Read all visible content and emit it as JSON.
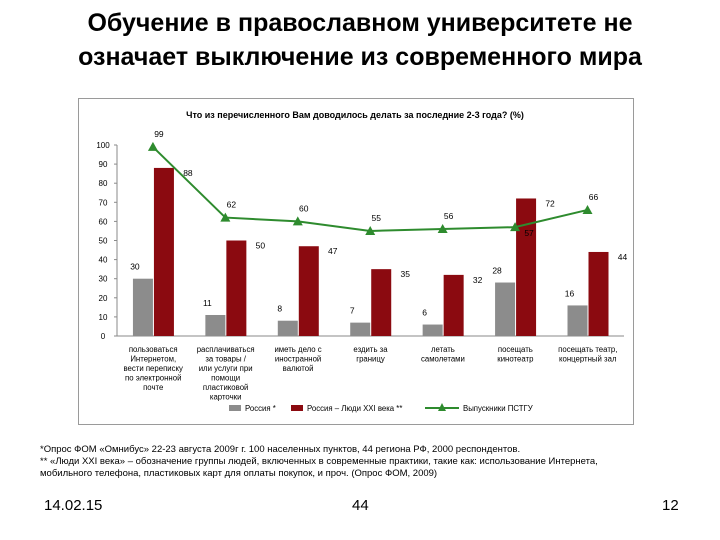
{
  "slide": {
    "title_line1": "Обучение в православном университете не",
    "title_line2": "означает выключение из современного мира"
  },
  "chart_data": {
    "type": "bar",
    "title": "Что из перечисленного Вам доводилось делать за последние 2-3 года? (%)",
    "categories": [
      [
        "пользоваться",
        "Интернетом,",
        "вести переписку",
        "по электронной",
        "почте"
      ],
      [
        "расплачиваться",
        "за товары /",
        "или услуги при",
        "помощи",
        "пластиковой",
        "карточки"
      ],
      [
        "иметь дело с",
        "иностранной",
        "валютой"
      ],
      [
        "ездить за",
        "границу"
      ],
      [
        "летать",
        "самолетами"
      ],
      [
        "посещать",
        "кинотеатр"
      ],
      [
        "посещать театр,",
        "концертный зал"
      ]
    ],
    "series": [
      {
        "name": "Россия *",
        "kind": "bar",
        "values": [
          30,
          11,
          8,
          7,
          6,
          28,
          16
        ],
        "color": "#8c8c8c"
      },
      {
        "name": "Россия – Люди XXI века **",
        "kind": "bar",
        "values": [
          88,
          50,
          47,
          35,
          32,
          72,
          44
        ],
        "color": "#8b0a10"
      },
      {
        "name": "Выпускники ПСТГУ",
        "kind": "line",
        "values": [
          99,
          62,
          60,
          55,
          56,
          57,
          66
        ],
        "color": "#2e8b2e"
      }
    ],
    "bar_labels": {
      "Россия *": [
        "30",
        "11",
        "8",
        "7",
        "6",
        "28",
        "16"
      ],
      "Россия – Люди XXI века **": [
        "88",
        "50",
        "47",
        "35",
        "32",
        "72",
        "44"
      ],
      "Выпускники ПСТГУ": [
        "99",
        "62",
        "60",
        "55",
        "56",
        "57",
        "66"
      ]
    },
    "yticks": [
      "0",
      "10",
      "20",
      "30",
      "40",
      "50",
      "60",
      "70",
      "80",
      "90",
      "100"
    ],
    "ylim": [
      0,
      100
    ],
    "grid": false,
    "legend": "bottom"
  },
  "footnote": {
    "line1": "*Опрос ФОМ «Омнибус» 22-23 августа 2009г г. 100 населенных пунктов, 44 региона РФ, 2000 респондентов.",
    "line2": "** «Люди XXI века» – обозначение группы людей, включенных в современные практики, такие как: использование Интернета,",
    "line3": "мобильного телефона, пластиковых карт для оплаты покупок, и проч. (Опрос ФОМ, 2009)"
  },
  "footer": {
    "date": "14.02.15",
    "center": "44",
    "page": "12"
  }
}
